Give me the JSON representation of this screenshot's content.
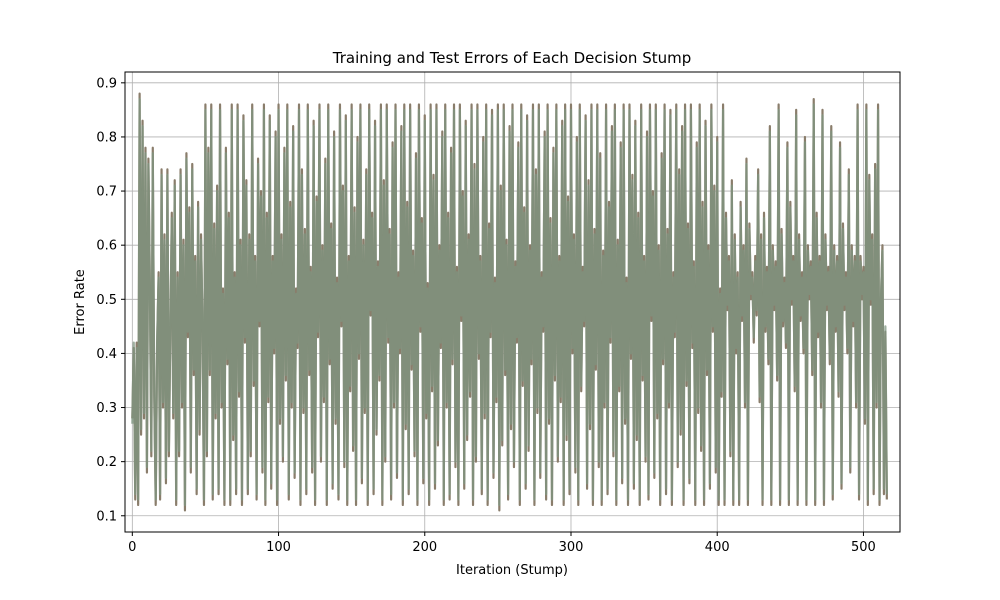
{
  "chart_data": {
    "type": "line",
    "title": "Training and Test Errors of Each Decision Stump",
    "xlabel": "Iteration (Stump)",
    "ylabel": "Error Rate",
    "xlim": [
      -5,
      525
    ],
    "ylim": [
      0.07,
      0.92
    ],
    "xticks": [
      0,
      100,
      200,
      300,
      400,
      500
    ],
    "yticks": [
      0.1,
      0.2,
      0.3,
      0.4,
      0.5,
      0.6,
      0.7,
      0.8,
      0.9
    ],
    "grid": true,
    "series": [
      {
        "role": "training",
        "color": "#8a7d6b",
        "x_start": 0,
        "x_step": 1,
        "values": [
          0.28,
          0.41,
          0.13,
          0.42,
          0.12,
          0.88,
          0.25,
          0.83,
          0.28,
          0.78,
          0.18,
          0.76,
          0.53,
          0.21,
          0.78,
          0.32,
          0.12,
          0.42,
          0.55,
          0.13,
          0.74,
          0.3,
          0.62,
          0.16,
          0.74,
          0.21,
          0.44,
          0.66,
          0.28,
          0.72,
          0.12,
          0.55,
          0.21,
          0.74,
          0.3,
          0.61,
          0.11,
          0.77,
          0.43,
          0.67,
          0.18,
          0.75,
          0.36,
          0.58,
          0.14,
          0.68,
          0.25,
          0.62,
          0.45,
          0.12,
          0.86,
          0.21,
          0.78,
          0.36,
          0.86,
          0.13,
          0.64,
          0.28,
          0.71,
          0.14,
          0.86,
          0.3,
          0.52,
          0.12,
          0.78,
          0.38,
          0.66,
          0.12,
          0.86,
          0.24,
          0.55,
          0.14,
          0.86,
          0.32,
          0.61,
          0.12,
          0.84,
          0.42,
          0.72,
          0.14,
          0.62,
          0.21,
          0.86,
          0.34,
          0.58,
          0.13,
          0.76,
          0.45,
          0.7,
          0.18,
          0.86,
          0.12,
          0.66,
          0.31,
          0.84,
          0.15,
          0.58,
          0.4,
          0.81,
          0.12,
          0.86,
          0.27,
          0.62,
          0.2,
          0.78,
          0.35,
          0.86,
          0.13,
          0.68,
          0.3,
          0.82,
          0.17,
          0.52,
          0.41,
          0.86,
          0.12,
          0.74,
          0.29,
          0.63,
          0.14,
          0.86,
          0.36,
          0.56,
          0.18,
          0.83,
          0.12,
          0.69,
          0.43,
          0.86,
          0.2,
          0.6,
          0.31,
          0.76,
          0.12,
          0.86,
          0.38,
          0.64,
          0.15,
          0.81,
          0.27,
          0.54,
          0.13,
          0.86,
          0.45,
          0.71,
          0.19,
          0.84,
          0.12,
          0.58,
          0.33,
          0.86,
          0.22,
          0.67,
          0.12,
          0.8,
          0.39,
          0.86,
          0.16,
          0.61,
          0.29,
          0.74,
          0.12,
          0.86,
          0.47,
          0.66,
          0.14,
          0.83,
          0.25,
          0.57,
          0.35,
          0.86,
          0.12,
          0.72,
          0.2,
          0.86,
          0.42,
          0.63,
          0.13,
          0.79,
          0.3,
          0.86,
          0.17,
          0.55,
          0.4,
          0.82,
          0.12,
          0.86,
          0.26,
          0.68,
          0.14,
          0.86,
          0.37,
          0.59,
          0.21,
          0.77,
          0.12,
          0.86,
          0.44,
          0.65,
          0.16,
          0.84,
          0.28,
          0.53,
          0.12,
          0.86,
          0.33,
          0.73,
          0.15,
          0.86,
          0.23,
          0.6,
          0.41,
          0.81,
          0.12,
          0.86,
          0.3,
          0.66,
          0.13,
          0.78,
          0.38,
          0.86,
          0.19,
          0.56,
          0.12,
          0.86,
          0.46,
          0.7,
          0.15,
          0.83,
          0.24,
          0.62,
          0.32,
          0.86,
          0.12,
          0.75,
          0.2,
          0.86,
          0.39,
          0.58,
          0.14,
          0.8,
          0.28,
          0.86,
          0.12,
          0.64,
          0.43,
          0.85,
          0.17,
          0.54,
          0.31,
          0.86,
          0.11,
          0.71,
          0.23,
          0.86,
          0.36,
          0.61,
          0.13,
          0.82,
          0.26,
          0.86,
          0.19,
          0.57,
          0.42,
          0.79,
          0.12,
          0.86,
          0.34,
          0.67,
          0.15,
          0.84,
          0.22,
          0.6,
          0.38,
          0.86,
          0.12,
          0.74,
          0.29,
          0.86,
          0.17,
          0.55,
          0.44,
          0.81,
          0.13,
          0.86,
          0.27,
          0.65,
          0.12,
          0.78,
          0.35,
          0.86,
          0.2,
          0.58,
          0.31,
          0.83,
          0.12,
          0.86,
          0.24,
          0.69,
          0.14,
          0.86,
          0.4,
          0.62,
          0.18,
          0.8,
          0.12,
          0.86,
          0.33,
          0.56,
          0.45,
          0.84,
          0.15,
          0.72,
          0.26,
          0.86,
          0.12,
          0.63,
          0.37,
          0.86,
          0.19,
          0.77,
          0.12,
          0.59,
          0.3,
          0.86,
          0.14,
          0.68,
          0.42,
          0.82,
          0.21,
          0.86,
          0.12,
          0.61,
          0.33,
          0.79,
          0.16,
          0.86,
          0.27,
          0.54,
          0.12,
          0.86,
          0.39,
          0.73,
          0.15,
          0.83,
          0.24,
          0.66,
          0.12,
          0.86,
          0.35,
          0.58,
          0.2,
          0.81,
          0.13,
          0.86,
          0.46,
          0.7,
          0.17,
          0.86,
          0.28,
          0.6,
          0.12,
          0.77,
          0.38,
          0.86,
          0.14,
          0.63,
          0.3,
          0.85,
          0.12,
          0.55,
          0.43,
          0.86,
          0.19,
          0.74,
          0.25,
          0.82,
          0.12,
          0.86,
          0.34,
          0.64,
          0.16,
          0.86,
          0.41,
          0.57,
          0.12,
          0.79,
          0.29,
          0.86,
          0.22,
          0.68,
          0.12,
          0.83,
          0.36,
          0.6,
          0.15,
          0.86,
          0.44,
          0.71,
          0.18,
          0.8,
          0.12,
          0.52,
          0.32,
          0.86,
          0.12,
          0.66,
          0.48,
          0.58,
          0.21,
          0.72,
          0.12,
          0.62,
          0.4,
          0.55,
          0.12,
          0.68,
          0.46,
          0.6,
          0.3,
          0.76,
          0.12,
          0.64,
          0.5,
          0.55,
          0.42,
          0.58,
          0.47,
          0.74,
          0.31,
          0.62,
          0.12,
          0.66,
          0.44,
          0.56,
          0.38,
          0.82,
          0.12,
          0.6,
          0.48,
          0.57,
          0.35,
          0.86,
          0.12,
          0.63,
          0.45,
          0.54,
          0.41,
          0.79,
          0.12,
          0.68,
          0.49,
          0.58,
          0.33,
          0.85,
          0.12,
          0.62,
          0.46,
          0.55,
          0.4,
          0.8,
          0.12,
          0.6,
          0.5,
          0.57,
          0.36,
          0.87,
          0.12,
          0.66,
          0.43,
          0.58,
          0.3,
          0.85,
          0.12,
          0.62,
          0.48,
          0.56,
          0.38,
          0.82,
          0.13,
          0.6,
          0.44,
          0.58,
          0.32,
          0.79,
          0.15,
          0.64,
          0.48,
          0.55,
          0.4,
          0.74,
          0.18,
          0.6,
          0.45,
          0.58,
          0.3,
          0.86,
          0.13,
          0.58,
          0.5,
          0.56,
          0.27,
          0.86,
          0.12,
          0.73,
          0.49,
          0.62,
          0.14,
          0.75,
          0.3,
          0.86,
          0.12,
          0.5,
          0.6,
          0.14,
          0.44,
          0.13
        ]
      },
      {
        "role": "test",
        "color": "#7e9580",
        "x_start": 0,
        "x_step": 1,
        "values": [
          0.27,
          0.42,
          0.14,
          0.41,
          0.13,
          0.87,
          0.26,
          0.82,
          0.29,
          0.77,
          0.19,
          0.75,
          0.52,
          0.22,
          0.77,
          0.33,
          0.13,
          0.43,
          0.54,
          0.14,
          0.73,
          0.31,
          0.61,
          0.17,
          0.73,
          0.22,
          0.45,
          0.65,
          0.29,
          0.71,
          0.13,
          0.54,
          0.22,
          0.73,
          0.31,
          0.6,
          0.12,
          0.76,
          0.44,
          0.66,
          0.19,
          0.74,
          0.37,
          0.57,
          0.15,
          0.67,
          0.26,
          0.61,
          0.46,
          0.13,
          0.85,
          0.22,
          0.77,
          0.37,
          0.85,
          0.14,
          0.63,
          0.29,
          0.7,
          0.15,
          0.85,
          0.31,
          0.51,
          0.13,
          0.77,
          0.39,
          0.65,
          0.13,
          0.85,
          0.25,
          0.54,
          0.15,
          0.85,
          0.33,
          0.6,
          0.13,
          0.83,
          0.43,
          0.71,
          0.15,
          0.61,
          0.22,
          0.85,
          0.35,
          0.57,
          0.14,
          0.75,
          0.46,
          0.69,
          0.19,
          0.85,
          0.13,
          0.65,
          0.32,
          0.83,
          0.16,
          0.57,
          0.41,
          0.8,
          0.13,
          0.85,
          0.28,
          0.61,
          0.21,
          0.77,
          0.36,
          0.85,
          0.14,
          0.67,
          0.31,
          0.81,
          0.18,
          0.51,
          0.42,
          0.85,
          0.13,
          0.73,
          0.3,
          0.62,
          0.15,
          0.85,
          0.37,
          0.55,
          0.19,
          0.82,
          0.13,
          0.68,
          0.44,
          0.85,
          0.21,
          0.59,
          0.32,
          0.75,
          0.13,
          0.85,
          0.39,
          0.63,
          0.16,
          0.8,
          0.28,
          0.53,
          0.14,
          0.85,
          0.46,
          0.7,
          0.2,
          0.83,
          0.13,
          0.57,
          0.34,
          0.85,
          0.23,
          0.66,
          0.13,
          0.79,
          0.4,
          0.85,
          0.17,
          0.6,
          0.3,
          0.73,
          0.13,
          0.85,
          0.48,
          0.65,
          0.15,
          0.82,
          0.26,
          0.56,
          0.36,
          0.85,
          0.13,
          0.71,
          0.21,
          0.85,
          0.43,
          0.62,
          0.14,
          0.78,
          0.31,
          0.85,
          0.18,
          0.54,
          0.41,
          0.81,
          0.13,
          0.85,
          0.27,
          0.67,
          0.15,
          0.85,
          0.38,
          0.58,
          0.22,
          0.76,
          0.13,
          0.85,
          0.45,
          0.64,
          0.17,
          0.83,
          0.29,
          0.52,
          0.13,
          0.85,
          0.34,
          0.72,
          0.16,
          0.85,
          0.24,
          0.59,
          0.42,
          0.8,
          0.13,
          0.85,
          0.31,
          0.65,
          0.14,
          0.77,
          0.39,
          0.85,
          0.2,
          0.55,
          0.13,
          0.85,
          0.47,
          0.69,
          0.16,
          0.82,
          0.25,
          0.61,
          0.33,
          0.85,
          0.13,
          0.74,
          0.21,
          0.85,
          0.4,
          0.57,
          0.15,
          0.79,
          0.29,
          0.85,
          0.13,
          0.63,
          0.44,
          0.84,
          0.18,
          0.53,
          0.32,
          0.85,
          0.12,
          0.7,
          0.24,
          0.85,
          0.37,
          0.6,
          0.14,
          0.81,
          0.27,
          0.85,
          0.2,
          0.56,
          0.43,
          0.78,
          0.13,
          0.85,
          0.35,
          0.66,
          0.16,
          0.83,
          0.23,
          0.59,
          0.39,
          0.85,
          0.13,
          0.73,
          0.3,
          0.85,
          0.18,
          0.54,
          0.45,
          0.8,
          0.14,
          0.85,
          0.28,
          0.64,
          0.13,
          0.77,
          0.36,
          0.85,
          0.21,
          0.57,
          0.32,
          0.82,
          0.13,
          0.85,
          0.25,
          0.68,
          0.15,
          0.85,
          0.41,
          0.61,
          0.19,
          0.79,
          0.13,
          0.85,
          0.34,
          0.55,
          0.46,
          0.83,
          0.16,
          0.71,
          0.27,
          0.85,
          0.13,
          0.62,
          0.38,
          0.85,
          0.2,
          0.76,
          0.13,
          0.58,
          0.31,
          0.85,
          0.15,
          0.67,
          0.43,
          0.81,
          0.22,
          0.85,
          0.13,
          0.6,
          0.34,
          0.78,
          0.17,
          0.85,
          0.28,
          0.53,
          0.13,
          0.85,
          0.4,
          0.72,
          0.16,
          0.82,
          0.25,
          0.65,
          0.13,
          0.85,
          0.36,
          0.57,
          0.21,
          0.8,
          0.14,
          0.85,
          0.47,
          0.69,
          0.18,
          0.85,
          0.29,
          0.59,
          0.13,
          0.76,
          0.39,
          0.85,
          0.15,
          0.62,
          0.31,
          0.84,
          0.13,
          0.54,
          0.44,
          0.85,
          0.2,
          0.73,
          0.26,
          0.81,
          0.13,
          0.85,
          0.35,
          0.63,
          0.17,
          0.85,
          0.42,
          0.56,
          0.13,
          0.78,
          0.3,
          0.85,
          0.23,
          0.67,
          0.13,
          0.82,
          0.37,
          0.59,
          0.16,
          0.85,
          0.45,
          0.7,
          0.19,
          0.79,
          0.13,
          0.51,
          0.33,
          0.85,
          0.13,
          0.65,
          0.49,
          0.57,
          0.22,
          0.71,
          0.13,
          0.61,
          0.41,
          0.54,
          0.13,
          0.67,
          0.47,
          0.59,
          0.31,
          0.75,
          0.13,
          0.63,
          0.51,
          0.54,
          0.43,
          0.57,
          0.48,
          0.73,
          0.32,
          0.61,
          0.13,
          0.65,
          0.45,
          0.55,
          0.39,
          0.81,
          0.13,
          0.59,
          0.49,
          0.56,
          0.36,
          0.85,
          0.13,
          0.62,
          0.46,
          0.53,
          0.42,
          0.78,
          0.13,
          0.67,
          0.5,
          0.57,
          0.34,
          0.84,
          0.13,
          0.61,
          0.47,
          0.54,
          0.41,
          0.79,
          0.13,
          0.59,
          0.51,
          0.56,
          0.37,
          0.86,
          0.13,
          0.65,
          0.44,
          0.57,
          0.31,
          0.84,
          0.13,
          0.61,
          0.49,
          0.55,
          0.39,
          0.81,
          0.14,
          0.59,
          0.45,
          0.57,
          0.33,
          0.78,
          0.16,
          0.63,
          0.49,
          0.54,
          0.41,
          0.73,
          0.19,
          0.59,
          0.46,
          0.57,
          0.31,
          0.85,
          0.14,
          0.57,
          0.51,
          0.55,
          0.28,
          0.85,
          0.13,
          0.72,
          0.5,
          0.61,
          0.15,
          0.74,
          0.31,
          0.85,
          0.13,
          0.51,
          0.59,
          0.15,
          0.45,
          0.14
        ]
      }
    ]
  }
}
